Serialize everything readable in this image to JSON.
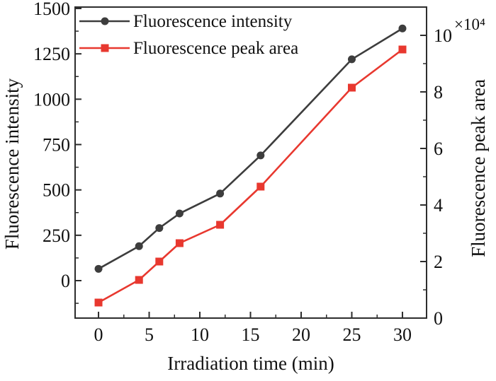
{
  "chart_data": {
    "type": "line",
    "title": "",
    "xlabel": "Irradiation time (min)",
    "ylabel_left": "Fluorescence intensity",
    "ylabel_right": "Fluorescence peak area",
    "right_axis_multiplier": "×10⁴",
    "x": [
      0,
      4,
      6,
      8,
      12,
      16,
      25,
      30
    ],
    "series": [
      {
        "name": "Fluorescence intensity",
        "axis": "left",
        "color": "#3d3d3d",
        "marker": "circle",
        "values": [
          65,
          190,
          290,
          370,
          480,
          690,
          1220,
          1390
        ]
      },
      {
        "name": "Fluorescence peak area",
        "axis": "right",
        "color": "#e8382f",
        "marker": "square",
        "values_unit": "×10⁴",
        "values": [
          0.55,
          1.35,
          2.0,
          2.65,
          3.3,
          4.65,
          8.15,
          9.5
        ]
      }
    ],
    "x_ticks": [
      0,
      5,
      10,
      15,
      20,
      25,
      30
    ],
    "x_minor_ticks": [
      2.5,
      7.5,
      12.5,
      17.5,
      22.5,
      27.5
    ],
    "left_ticks": [
      0,
      250,
      500,
      750,
      1000,
      1250,
      1500
    ],
    "left_minor_ticks": [
      -125,
      125,
      375,
      625,
      875,
      1125,
      1375
    ],
    "right_ticks": [
      0,
      2,
      4,
      6,
      8,
      10
    ],
    "right_minor_ticks": [
      1,
      3,
      5,
      7,
      9
    ],
    "xlim": [
      -2.31,
      32.38
    ],
    "ylim_left": [
      -206.5,
      1507.8
    ],
    "ylim_right": [
      0,
      11
    ],
    "grid": false,
    "legend_position": "top-left",
    "frame_color": "#2d2d2d",
    "text_color": "#111111"
  }
}
